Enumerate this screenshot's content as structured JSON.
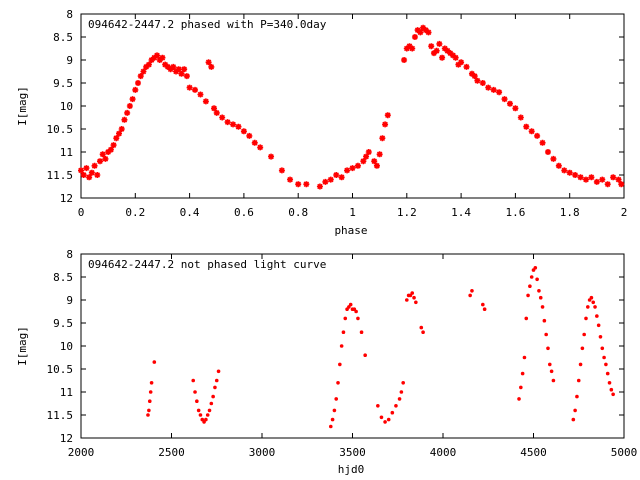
{
  "colors": {
    "points": "#ff0000",
    "axes": "#000000",
    "background": "#ffffff"
  },
  "chart_data": [
    {
      "type": "scatter",
      "title": "094642-2447.2 phased with P=340.0day",
      "xlabel": "phase",
      "ylabel": "I[mag]",
      "xlim": [
        0,
        2
      ],
      "ylim": [
        8,
        12
      ],
      "y_inverted": true,
      "grid": false,
      "x_ticks": [
        "0",
        "0.2",
        "0.4",
        "0.6",
        "0.8",
        "1",
        "1.2",
        "1.4",
        "1.6",
        "1.8",
        "2"
      ],
      "y_ticks": [
        "8",
        "8.5",
        "9",
        "9.5",
        "10",
        "10.5",
        "11",
        "11.5",
        "12"
      ],
      "marker": "star",
      "series": [
        {
          "points": [
            [
              0.0,
              11.4
            ],
            [
              0.01,
              11.5
            ],
            [
              0.02,
              11.35
            ],
            [
              0.03,
              11.55
            ],
            [
              0.04,
              11.45
            ],
            [
              0.05,
              11.3
            ],
            [
              0.06,
              11.5
            ],
            [
              0.07,
              11.2
            ],
            [
              0.08,
              11.05
            ],
            [
              0.09,
              11.15
            ],
            [
              0.1,
              11.0
            ],
            [
              0.11,
              10.95
            ],
            [
              0.12,
              10.85
            ],
            [
              0.13,
              10.7
            ],
            [
              0.14,
              10.6
            ],
            [
              0.15,
              10.5
            ],
            [
              0.16,
              10.3
            ],
            [
              0.17,
              10.15
            ],
            [
              0.18,
              10.0
            ],
            [
              0.19,
              9.85
            ],
            [
              0.2,
              9.65
            ],
            [
              0.21,
              9.5
            ],
            [
              0.22,
              9.35
            ],
            [
              0.23,
              9.25
            ],
            [
              0.24,
              9.15
            ],
            [
              0.25,
              9.1
            ],
            [
              0.26,
              9.0
            ],
            [
              0.27,
              8.95
            ],
            [
              0.28,
              8.9
            ],
            [
              0.29,
              9.0
            ],
            [
              0.3,
              8.95
            ],
            [
              0.31,
              9.1
            ],
            [
              0.32,
              9.15
            ],
            [
              0.33,
              9.2
            ],
            [
              0.34,
              9.15
            ],
            [
              0.35,
              9.25
            ],
            [
              0.36,
              9.2
            ],
            [
              0.37,
              9.3
            ],
            [
              0.38,
              9.2
            ],
            [
              0.39,
              9.35
            ],
            [
              0.4,
              9.6
            ],
            [
              0.42,
              9.65
            ],
            [
              0.44,
              9.75
            ],
            [
              0.46,
              9.9
            ],
            [
              0.47,
              9.05
            ],
            [
              0.48,
              9.15
            ],
            [
              0.49,
              10.05
            ],
            [
              0.5,
              10.15
            ],
            [
              0.52,
              10.25
            ],
            [
              0.54,
              10.35
            ],
            [
              0.56,
              10.4
            ],
            [
              0.58,
              10.45
            ],
            [
              0.6,
              10.55
            ],
            [
              0.62,
              10.65
            ],
            [
              0.64,
              10.8
            ],
            [
              0.66,
              10.9
            ],
            [
              0.7,
              11.1
            ],
            [
              0.74,
              11.4
            ],
            [
              0.77,
              11.6
            ],
            [
              0.8,
              11.7
            ],
            [
              0.83,
              11.7
            ],
            [
              0.88,
              11.75
            ],
            [
              0.9,
              11.65
            ],
            [
              0.92,
              11.6
            ],
            [
              0.94,
              11.5
            ],
            [
              0.96,
              11.55
            ],
            [
              0.98,
              11.4
            ],
            [
              1.0,
              11.35
            ],
            [
              1.02,
              11.3
            ],
            [
              1.04,
              11.2
            ],
            [
              1.05,
              11.1
            ],
            [
              1.06,
              11.0
            ],
            [
              1.08,
              11.2
            ],
            [
              1.09,
              11.3
            ],
            [
              1.1,
              11.05
            ],
            [
              1.11,
              10.7
            ],
            [
              1.12,
              10.4
            ],
            [
              1.13,
              10.2
            ],
            [
              1.19,
              9.0
            ],
            [
              1.2,
              8.75
            ],
            [
              1.21,
              8.7
            ],
            [
              1.22,
              8.75
            ],
            [
              1.23,
              8.5
            ],
            [
              1.24,
              8.35
            ],
            [
              1.25,
              8.4
            ],
            [
              1.26,
              8.3
            ],
            [
              1.27,
              8.35
            ],
            [
              1.28,
              8.4
            ],
            [
              1.29,
              8.7
            ],
            [
              1.3,
              8.85
            ],
            [
              1.31,
              8.8
            ],
            [
              1.32,
              8.65
            ],
            [
              1.33,
              8.95
            ],
            [
              1.34,
              8.75
            ],
            [
              1.35,
              8.8
            ],
            [
              1.36,
              8.85
            ],
            [
              1.37,
              8.9
            ],
            [
              1.38,
              8.95
            ],
            [
              1.39,
              9.1
            ],
            [
              1.4,
              9.05
            ],
            [
              1.42,
              9.15
            ],
            [
              1.44,
              9.3
            ],
            [
              1.45,
              9.35
            ],
            [
              1.46,
              9.45
            ],
            [
              1.48,
              9.5
            ],
            [
              1.5,
              9.6
            ],
            [
              1.52,
              9.65
            ],
            [
              1.54,
              9.7
            ],
            [
              1.56,
              9.85
            ],
            [
              1.58,
              9.95
            ],
            [
              1.6,
              10.05
            ],
            [
              1.62,
              10.25
            ],
            [
              1.64,
              10.45
            ],
            [
              1.66,
              10.55
            ],
            [
              1.68,
              10.65
            ],
            [
              1.7,
              10.8
            ],
            [
              1.72,
              11.0
            ],
            [
              1.74,
              11.15
            ],
            [
              1.76,
              11.3
            ],
            [
              1.78,
              11.4
            ],
            [
              1.8,
              11.45
            ],
            [
              1.82,
              11.5
            ],
            [
              1.84,
              11.55
            ],
            [
              1.86,
              11.6
            ],
            [
              1.88,
              11.55
            ],
            [
              1.9,
              11.65
            ],
            [
              1.92,
              11.6
            ],
            [
              1.94,
              11.7
            ],
            [
              1.96,
              11.55
            ],
            [
              1.98,
              11.6
            ],
            [
              1.99,
              11.7
            ]
          ]
        }
      ]
    },
    {
      "type": "scatter",
      "title": "094642-2447.2 not phased light curve",
      "xlabel": "hjd0",
      "ylabel": "I[mag]",
      "xlim": [
        2000,
        5000
      ],
      "ylim": [
        8,
        12
      ],
      "y_inverted": true,
      "grid": false,
      "x_ticks": [
        "2000",
        "2500",
        "3000",
        "3500",
        "4000",
        "4500",
        "5000"
      ],
      "y_ticks": [
        "8",
        "8.5",
        "9",
        "9.5",
        "10",
        "10.5",
        "11",
        "11.5",
        "12"
      ],
      "marker": "dot",
      "series": [
        {
          "points": [
            [
              2370,
              11.5
            ],
            [
              2375,
              11.4
            ],
            [
              2380,
              11.2
            ],
            [
              2385,
              11.0
            ],
            [
              2390,
              10.8
            ],
            [
              2405,
              10.35
            ],
            [
              2620,
              10.75
            ],
            [
              2630,
              11.0
            ],
            [
              2640,
              11.2
            ],
            [
              2650,
              11.4
            ],
            [
              2660,
              11.5
            ],
            [
              2670,
              11.6
            ],
            [
              2680,
              11.65
            ],
            [
              2690,
              11.6
            ],
            [
              2700,
              11.5
            ],
            [
              2710,
              11.4
            ],
            [
              2720,
              11.25
            ],
            [
              2730,
              11.1
            ],
            [
              2740,
              10.9
            ],
            [
              2750,
              10.75
            ],
            [
              2760,
              10.55
            ],
            [
              3380,
              11.75
            ],
            [
              3390,
              11.6
            ],
            [
              3400,
              11.4
            ],
            [
              3410,
              11.15
            ],
            [
              3420,
              10.8
            ],
            [
              3430,
              10.4
            ],
            [
              3440,
              10.0
            ],
            [
              3450,
              9.7
            ],
            [
              3460,
              9.4
            ],
            [
              3470,
              9.2
            ],
            [
              3480,
              9.15
            ],
            [
              3490,
              9.1
            ],
            [
              3500,
              9.2
            ],
            [
              3510,
              9.2
            ],
            [
              3520,
              9.25
            ],
            [
              3530,
              9.4
            ],
            [
              3550,
              9.7
            ],
            [
              3570,
              10.2
            ],
            [
              3640,
              11.3
            ],
            [
              3660,
              11.55
            ],
            [
              3680,
              11.65
            ],
            [
              3700,
              11.6
            ],
            [
              3720,
              11.45
            ],
            [
              3740,
              11.3
            ],
            [
              3760,
              11.15
            ],
            [
              3770,
              11.0
            ],
            [
              3780,
              10.8
            ],
            [
              3800,
              9.0
            ],
            [
              3810,
              8.9
            ],
            [
              3820,
              8.9
            ],
            [
              3830,
              8.85
            ],
            [
              3840,
              8.95
            ],
            [
              3850,
              9.05
            ],
            [
              3880,
              9.6
            ],
            [
              3890,
              9.7
            ],
            [
              4150,
              8.9
            ],
            [
              4160,
              8.8
            ],
            [
              4220,
              9.1
            ],
            [
              4230,
              9.2
            ],
            [
              4420,
              11.15
            ],
            [
              4430,
              10.9
            ],
            [
              4440,
              10.6
            ],
            [
              4450,
              10.25
            ],
            [
              4460,
              9.4
            ],
            [
              4470,
              8.9
            ],
            [
              4480,
              8.7
            ],
            [
              4490,
              8.5
            ],
            [
              4500,
              8.35
            ],
            [
              4510,
              8.3
            ],
            [
              4520,
              8.55
            ],
            [
              4530,
              8.8
            ],
            [
              4540,
              8.95
            ],
            [
              4550,
              9.15
            ],
            [
              4560,
              9.45
            ],
            [
              4570,
              9.75
            ],
            [
              4580,
              10.05
            ],
            [
              4590,
              10.4
            ],
            [
              4600,
              10.55
            ],
            [
              4610,
              10.75
            ],
            [
              4720,
              11.6
            ],
            [
              4730,
              11.4
            ],
            [
              4740,
              11.1
            ],
            [
              4750,
              10.75
            ],
            [
              4760,
              10.4
            ],
            [
              4770,
              10.05
            ],
            [
              4780,
              9.75
            ],
            [
              4790,
              9.4
            ],
            [
              4800,
              9.15
            ],
            [
              4810,
              9.0
            ],
            [
              4820,
              8.95
            ],
            [
              4830,
              9.05
            ],
            [
              4840,
              9.15
            ],
            [
              4850,
              9.35
            ],
            [
              4860,
              9.55
            ],
            [
              4870,
              9.8
            ],
            [
              4880,
              10.05
            ],
            [
              4890,
              10.25
            ],
            [
              4900,
              10.4
            ],
            [
              4910,
              10.6
            ],
            [
              4920,
              10.8
            ],
            [
              4930,
              10.95
            ],
            [
              4940,
              11.05
            ]
          ]
        }
      ]
    }
  ]
}
